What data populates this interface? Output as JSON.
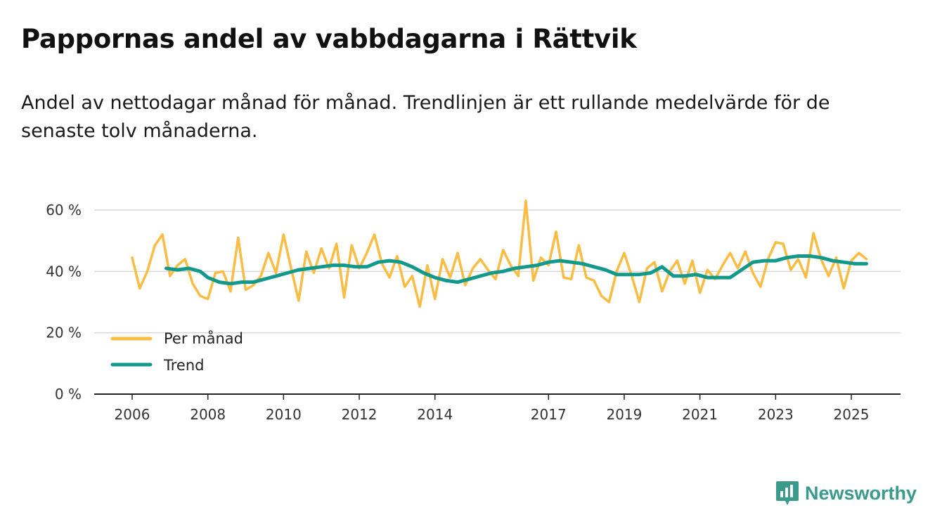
{
  "chart_data": {
    "type": "line",
    "title": "Pappornas andel av vabbdagarna i Rättvik",
    "subtitle": "Andel av nettodagar månad för månad. Trendlinjen är ett rullande medelvärde för de senaste tolv månaderna.",
    "xlabel": "",
    "ylabel": "",
    "ylim": [
      0,
      65
    ],
    "y_ticks": [
      {
        "value": 0,
        "label": "0 %"
      },
      {
        "value": 20,
        "label": "20 %"
      },
      {
        "value": 40,
        "label": "40 %"
      },
      {
        "value": 60,
        "label": "60 %"
      }
    ],
    "x_ticks": [
      {
        "value": 2006,
        "label": "2006"
      },
      {
        "value": 2008,
        "label": "2008"
      },
      {
        "value": 2010,
        "label": "2010"
      },
      {
        "value": 2012,
        "label": "2012"
      },
      {
        "value": 2014,
        "label": "2014"
      },
      {
        "value": 2017,
        "label": "2017"
      },
      {
        "value": 2019,
        "label": "2019"
      },
      {
        "value": 2021,
        "label": "2021"
      },
      {
        "value": 2023,
        "label": "2023"
      },
      {
        "value": 2025,
        "label": "2025"
      }
    ],
    "xlim": [
      2005.0,
      2026.3
    ],
    "legend_position": "bottom-left",
    "grid": true,
    "series": [
      {
        "name": "Per månad",
        "color": "#fbbc43",
        "x": [
          2006.0,
          2006.2,
          2006.4,
          2006.6,
          2006.8,
          2007.0,
          2007.2,
          2007.4,
          2007.6,
          2007.8,
          2008.0,
          2008.2,
          2008.4,
          2008.6,
          2008.8,
          2009.0,
          2009.2,
          2009.4,
          2009.6,
          2009.8,
          2010.0,
          2010.2,
          2010.4,
          2010.6,
          2010.8,
          2011.0,
          2011.2,
          2011.4,
          2011.6,
          2011.8,
          2012.0,
          2012.2,
          2012.4,
          2012.6,
          2012.8,
          2013.0,
          2013.2,
          2013.4,
          2013.6,
          2013.8,
          2014.0,
          2014.2,
          2014.4,
          2014.6,
          2014.8,
          2015.0,
          2015.2,
          2015.4,
          2015.6,
          2015.8,
          2016.0,
          2016.2,
          2016.4,
          2016.6,
          2016.8,
          2017.0,
          2017.2,
          2017.4,
          2017.6,
          2017.8,
          2018.0,
          2018.2,
          2018.4,
          2018.6,
          2018.8,
          2019.0,
          2019.2,
          2019.4,
          2019.6,
          2019.8,
          2020.0,
          2020.2,
          2020.4,
          2020.6,
          2020.8,
          2021.0,
          2021.2,
          2021.4,
          2021.6,
          2021.8,
          2022.0,
          2022.2,
          2022.4,
          2022.6,
          2022.8,
          2023.0,
          2023.2,
          2023.4,
          2023.6,
          2023.8,
          2024.0,
          2024.2,
          2024.4,
          2024.6,
          2024.8,
          2025.0,
          2025.2,
          2025.4
        ],
        "values": [
          44.5,
          34.5,
          40.0,
          48.5,
          52.0,
          38.5,
          42.0,
          44.0,
          36.0,
          32.0,
          31.0,
          39.5,
          40.0,
          33.5,
          51.0,
          34.0,
          35.5,
          38.5,
          46.0,
          39.5,
          52.0,
          41.0,
          30.5,
          46.5,
          39.5,
          47.5,
          41.0,
          49.0,
          31.5,
          48.5,
          41.0,
          46.0,
          52.0,
          42.5,
          38.0,
          45.0,
          35.0,
          38.5,
          28.5,
          42.0,
          31.0,
          44.0,
          38.0,
          46.0,
          35.5,
          41.0,
          44.0,
          40.5,
          37.5,
          47.0,
          42.0,
          38.5,
          63.0,
          37.0,
          44.5,
          42.0,
          53.0,
          38.0,
          37.5,
          48.5,
          38.0,
          37.0,
          32.0,
          30.0,
          40.0,
          46.0,
          38.5,
          30.0,
          41.0,
          43.0,
          33.5,
          40.0,
          43.5,
          36.0,
          43.5,
          33.0,
          40.5,
          37.5,
          42.0,
          46.0,
          41.0,
          46.5,
          39.5,
          35.0,
          44.0,
          49.5,
          49.0,
          40.5,
          44.0,
          38.0,
          52.5,
          44.0,
          38.5,
          44.5,
          34.5,
          43.5,
          46.0,
          44.0
        ]
      },
      {
        "name": "Trend",
        "color": "#12998c",
        "x": [
          2006.9,
          2007.2,
          2007.5,
          2007.8,
          2008.0,
          2008.3,
          2008.6,
          2008.9,
          2009.2,
          2009.5,
          2009.8,
          2010.1,
          2010.4,
          2010.7,
          2011.0,
          2011.3,
          2011.6,
          2011.9,
          2012.2,
          2012.5,
          2012.8,
          2013.1,
          2013.4,
          2013.7,
          2014.0,
          2014.3,
          2014.6,
          2014.9,
          2015.2,
          2015.5,
          2015.8,
          2016.1,
          2016.4,
          2016.7,
          2017.0,
          2017.3,
          2017.6,
          2017.9,
          2018.2,
          2018.5,
          2018.8,
          2019.1,
          2019.4,
          2019.7,
          2020.0,
          2020.3,
          2020.6,
          2020.9,
          2021.2,
          2021.5,
          2021.8,
          2022.1,
          2022.4,
          2022.7,
          2023.0,
          2023.3,
          2023.6,
          2023.9,
          2024.2,
          2024.5,
          2024.8,
          2025.1,
          2025.4
        ],
        "values": [
          41.0,
          40.5,
          41.0,
          40.0,
          38.0,
          36.5,
          36.0,
          36.5,
          36.5,
          37.5,
          38.5,
          39.5,
          40.5,
          41.0,
          41.5,
          42.0,
          42.0,
          41.5,
          41.5,
          43.0,
          43.5,
          43.0,
          41.5,
          39.5,
          38.0,
          37.0,
          36.5,
          37.5,
          38.5,
          39.5,
          40.0,
          41.0,
          41.5,
          42.0,
          43.0,
          43.5,
          43.0,
          42.5,
          41.5,
          40.5,
          39.0,
          39.0,
          39.0,
          39.5,
          41.5,
          38.5,
          38.5,
          39.0,
          38.0,
          38.0,
          38.0,
          40.5,
          43.0,
          43.5,
          43.5,
          44.5,
          45.0,
          45.0,
          44.5,
          43.5,
          43.0,
          42.5,
          42.5
        ]
      }
    ]
  },
  "brand": {
    "name": "Newsworthy",
    "color": "#3a9a8c"
  }
}
